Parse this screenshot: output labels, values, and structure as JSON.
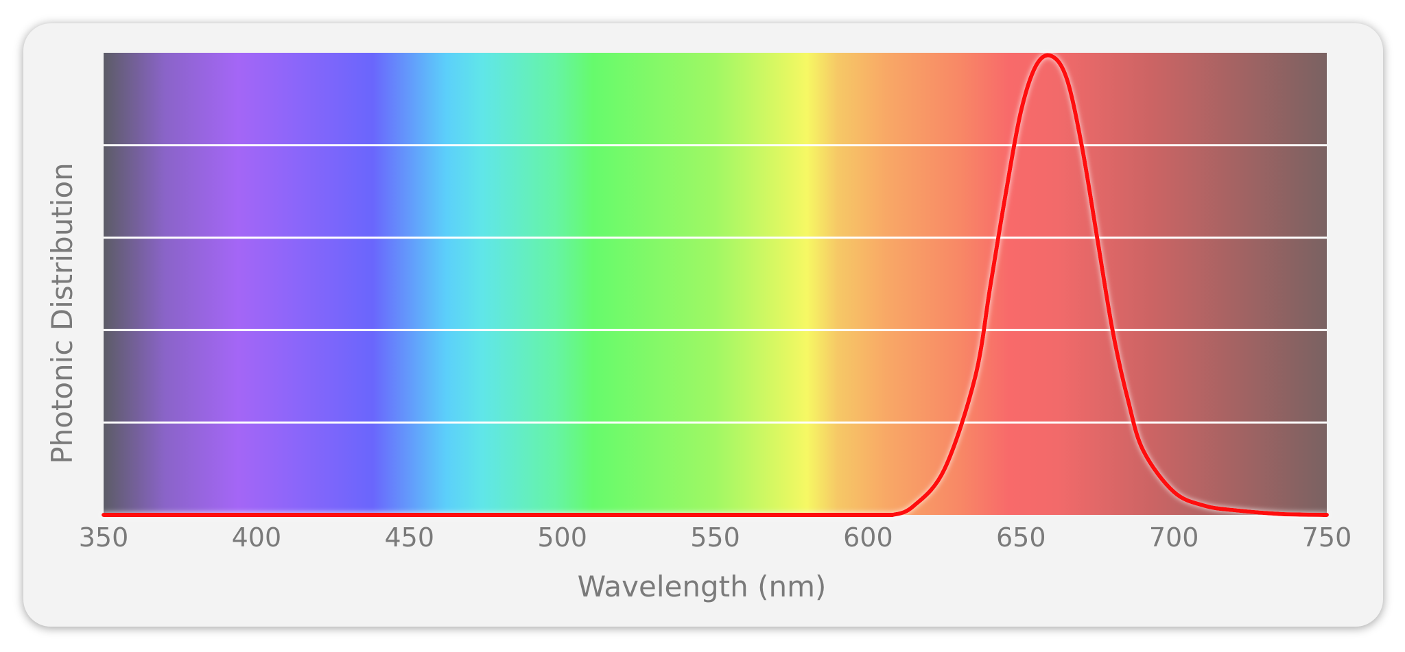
{
  "chart_data": {
    "type": "line",
    "title": "",
    "xlabel": "Wavelength (nm)",
    "ylabel": "Photonic Distribution",
    "xlim": [
      350,
      750
    ],
    "ylim": [
      0,
      1
    ],
    "x_ticks": [
      350,
      400,
      450,
      500,
      550,
      600,
      650,
      700,
      750
    ],
    "x_tick_labels": [
      "350",
      "400",
      "450",
      "500",
      "550",
      "600",
      "650",
      "700",
      "750"
    ],
    "y_tick_labels_shown": false,
    "grid": "horizontal",
    "horizontal_gridlines": [
      0.2,
      0.4,
      0.6,
      0.8
    ],
    "legend": "none",
    "background": "visible-spectrum-gradient",
    "series": [
      {
        "color": "#ff0a0a",
        "x": [
          350,
          400,
          450,
          500,
          550,
          600,
          608,
          615,
          625,
          635,
          640,
          645,
          650,
          655,
          660,
          665,
          670,
          675,
          680,
          685,
          690,
          700,
          710,
          720,
          735,
          750
        ],
        "y": [
          0,
          0,
          0,
          0,
          0,
          0,
          0.0,
          0.02,
          0.1,
          0.3,
          0.5,
          0.7,
          0.88,
          0.98,
          1.0,
          0.95,
          0.8,
          0.6,
          0.4,
          0.25,
          0.14,
          0.05,
          0.02,
          0.01,
          0.002,
          0.0
        ]
      }
    ]
  },
  "colors": {
    "curve": "#ff0a0a",
    "gridline": "#ffffff",
    "card_background": "#f3f3f3",
    "text": "#7a7a7a"
  }
}
